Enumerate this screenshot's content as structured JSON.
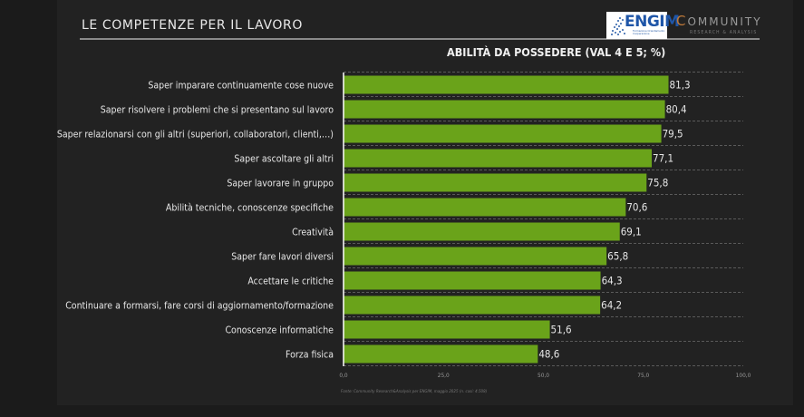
{
  "header": {
    "title": "LE COMPETENZE PER IL LAVORO",
    "logo_engim": "ENGIM",
    "logo_engim_sub": "Formazione Orientamento Cooperazione",
    "logo_community": "OMMUNITY",
    "logo_community_initial": "C",
    "logo_community_sub": "RESEARCH & ANALYSIS"
  },
  "chart_data": {
    "type": "bar",
    "orientation": "horizontal",
    "title": "ABILITÀ DA POSSEDERE (VAL 4 E 5; %)",
    "xlabel": "",
    "ylabel": "",
    "xlim": [
      0,
      100
    ],
    "x_ticks": [
      "0,0",
      "25,0",
      "50,0",
      "75,0",
      "100,0"
    ],
    "x_tick_values": [
      0,
      25,
      50,
      75,
      100
    ],
    "grid": "horizontal dashed separators",
    "bar_color": "#6aa31a",
    "categories": [
      "Saper imparare continuamente cose nuove",
      "Saper risolvere i problemi che si presentano sul lavoro",
      "Saper relazionarsi con gli altri (superiori, collaboratori, clienti,…)",
      "Saper ascoltare gli altri",
      "Saper lavorare in gruppo",
      "Abilità tecniche, conoscenze specifiche",
      "Creatività",
      "Saper fare lavori diversi",
      "Accettare le critiche",
      "Continuare a formarsi, fare corsi di aggiornamento/formazione",
      "Conoscenze informatiche",
      "Forza fisica"
    ],
    "values": [
      81.3,
      80.4,
      79.5,
      77.1,
      75.8,
      70.6,
      69.1,
      65.8,
      64.3,
      64.2,
      51.6,
      48.6
    ],
    "value_labels": [
      "81,3",
      "80,4",
      "79,5",
      "77,1",
      "75,8",
      "70,6",
      "69,1",
      "65,8",
      "64,3",
      "64,2",
      "51,6",
      "48,6"
    ]
  },
  "source": "Fonte: Community Research&Analysis per ENGIM, maggio 2025 (n. casi: 4.508)"
}
